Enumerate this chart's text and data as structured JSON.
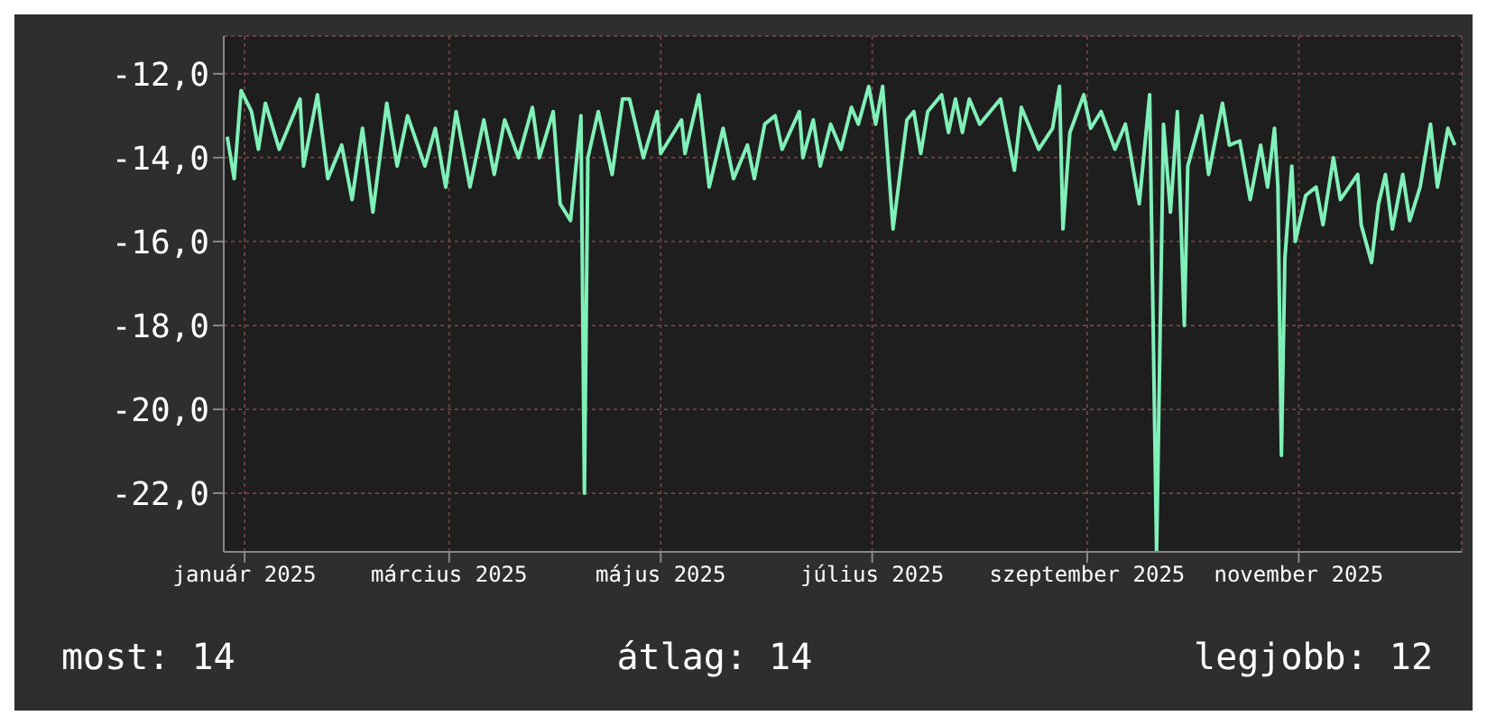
{
  "chart_data": {
    "type": "line",
    "x": [
      "2024-12-27",
      "2024-12-29",
      "2024-12-31",
      "2025-01-03",
      "2025-01-05",
      "2025-01-07",
      "2025-01-11",
      "2025-01-17",
      "2025-01-18",
      "2025-01-22",
      "2025-01-25",
      "2025-01-29",
      "2025-02-01",
      "2025-02-04",
      "2025-02-07",
      "2025-02-11",
      "2025-02-14",
      "2025-02-17",
      "2025-02-22",
      "2025-02-25",
      "2025-02-28",
      "2025-03-03",
      "2025-03-07",
      "2025-03-11",
      "2025-03-14",
      "2025-03-17",
      "2025-03-21",
      "2025-03-25",
      "2025-03-27",
      "2025-03-31",
      "2025-04-02",
      "2025-04-05",
      "2025-04-08",
      "2025-04-09",
      "2025-04-10",
      "2025-04-13",
      "2025-04-17",
      "2025-04-20",
      "2025-04-22",
      "2025-04-26",
      "2025-04-30",
      "2025-05-01",
      "2025-05-07",
      "2025-05-08",
      "2025-05-12",
      "2025-05-15",
      "2025-05-19",
      "2025-05-22",
      "2025-05-26",
      "2025-05-28",
      "2025-05-31",
      "2025-06-03",
      "2025-06-05",
      "2025-06-10",
      "2025-06-11",
      "2025-06-14",
      "2025-06-16",
      "2025-06-19",
      "2025-06-22",
      "2025-06-25",
      "2025-06-27",
      "2025-06-30",
      "2025-07-02",
      "2025-07-04",
      "2025-07-07",
      "2025-07-11",
      "2025-07-13",
      "2025-07-15",
      "2025-07-17",
      "2025-07-21",
      "2025-07-23",
      "2025-07-25",
      "2025-07-27",
      "2025-07-29",
      "2025-08-01",
      "2025-08-07",
      "2025-08-11",
      "2025-08-13",
      "2025-08-18",
      "2025-08-22",
      "2025-08-24",
      "2025-08-25",
      "2025-08-27",
      "2025-08-31",
      "2025-09-02",
      "2025-09-05",
      "2025-09-09",
      "2025-09-12",
      "2025-09-16",
      "2025-09-19",
      "2025-09-21",
      "2025-09-23",
      "2025-09-25",
      "2025-09-27",
      "2025-09-29",
      "2025-09-30",
      "2025-10-04",
      "2025-10-06",
      "2025-10-10",
      "2025-10-12",
      "2025-10-15",
      "2025-10-18",
      "2025-10-21",
      "2025-10-23",
      "2025-10-25",
      "2025-10-26",
      "2025-10-27",
      "2025-10-28",
      "2025-10-30",
      "2025-10-31",
      "2025-11-03",
      "2025-11-06",
      "2025-11-08",
      "2025-11-11",
      "2025-11-13",
      "2025-11-18",
      "2025-11-19",
      "2025-11-22",
      "2025-11-24",
      "2025-11-26",
      "2025-11-28",
      "2025-12-01",
      "2025-12-03",
      "2025-12-06",
      "2025-12-09",
      "2025-12-11",
      "2025-12-14",
      "2025-12-16"
    ],
    "series": [
      {
        "color": "#80f0b8",
        "values": [
          -13.5,
          -14.5,
          -12.4,
          -12.9,
          -13.8,
          -12.7,
          -13.8,
          -12.6,
          -14.2,
          -12.5,
          -14.5,
          -13.7,
          -15.0,
          -13.3,
          -15.3,
          -12.7,
          -14.2,
          -13.0,
          -14.2,
          -13.3,
          -14.7,
          -12.9,
          -14.7,
          -13.1,
          -14.4,
          -13.1,
          -14.0,
          -12.8,
          -14.0,
          -12.9,
          -15.1,
          -15.5,
          -13.0,
          -22.0,
          -14.0,
          -12.9,
          -14.4,
          -12.6,
          -12.6,
          -14.0,
          -12.9,
          -13.9,
          -13.1,
          -13.9,
          -12.5,
          -14.7,
          -13.3,
          -14.5,
          -13.7,
          -14.5,
          -13.2,
          -13.0,
          -13.8,
          -12.9,
          -14.0,
          -13.1,
          -14.2,
          -13.2,
          -13.8,
          -12.8,
          -13.2,
          -12.3,
          -13.2,
          -12.3,
          -15.7,
          -13.1,
          -12.9,
          -13.9,
          -12.9,
          -12.5,
          -13.4,
          -12.6,
          -13.4,
          -12.6,
          -13.2,
          -12.6,
          -14.3,
          -12.8,
          -13.8,
          -13.3,
          -12.3,
          -15.7,
          -13.4,
          -12.5,
          -13.3,
          -12.9,
          -13.8,
          -13.2,
          -15.1,
          -12.5,
          -23.4,
          -13.2,
          -15.3,
          -12.9,
          -18.0,
          -14.2,
          -13.0,
          -14.4,
          -12.7,
          -13.7,
          -13.6,
          -15.0,
          -13.7,
          -14.7,
          -13.3,
          -14.7,
          -21.1,
          -16.4,
          -14.2,
          -16.0,
          -14.9,
          -14.7,
          -15.6,
          -14.0,
          -15.0,
          -14.4,
          -15.6,
          -16.5,
          -15.1,
          -14.4,
          -15.7,
          -14.4,
          -15.5,
          -14.7,
          -13.2,
          -14.7,
          -13.3,
          -13.7
        ]
      }
    ],
    "xlim": [
      "2024-12-26",
      "2025-12-18"
    ],
    "xticks": [
      {
        "value": "2025-01-01",
        "label": "január 2025"
      },
      {
        "value": "2025-03-01",
        "label": "március 2025"
      },
      {
        "value": "2025-05-01",
        "label": "május 2025"
      },
      {
        "value": "2025-07-01",
        "label": "július 2025"
      },
      {
        "value": "2025-09-01",
        "label": "szeptember 2025"
      },
      {
        "value": "2025-11-01",
        "label": "november 2025"
      }
    ],
    "ylim": [
      -23.4,
      -11.1
    ],
    "yticks": [
      {
        "value": -12,
        "label": "-12,0"
      },
      {
        "value": -14,
        "label": "-14,0"
      },
      {
        "value": -16,
        "label": "-16,0"
      },
      {
        "value": -18,
        "label": "-18,0"
      },
      {
        "value": -20,
        "label": "-20,0"
      },
      {
        "value": -22,
        "label": "-22,0"
      }
    ],
    "grid": true,
    "legend": false,
    "marker": "none",
    "line_style": "solid",
    "annotations": [
      "most: 14",
      "átlag: 14",
      "legjobb: 12"
    ]
  }
}
